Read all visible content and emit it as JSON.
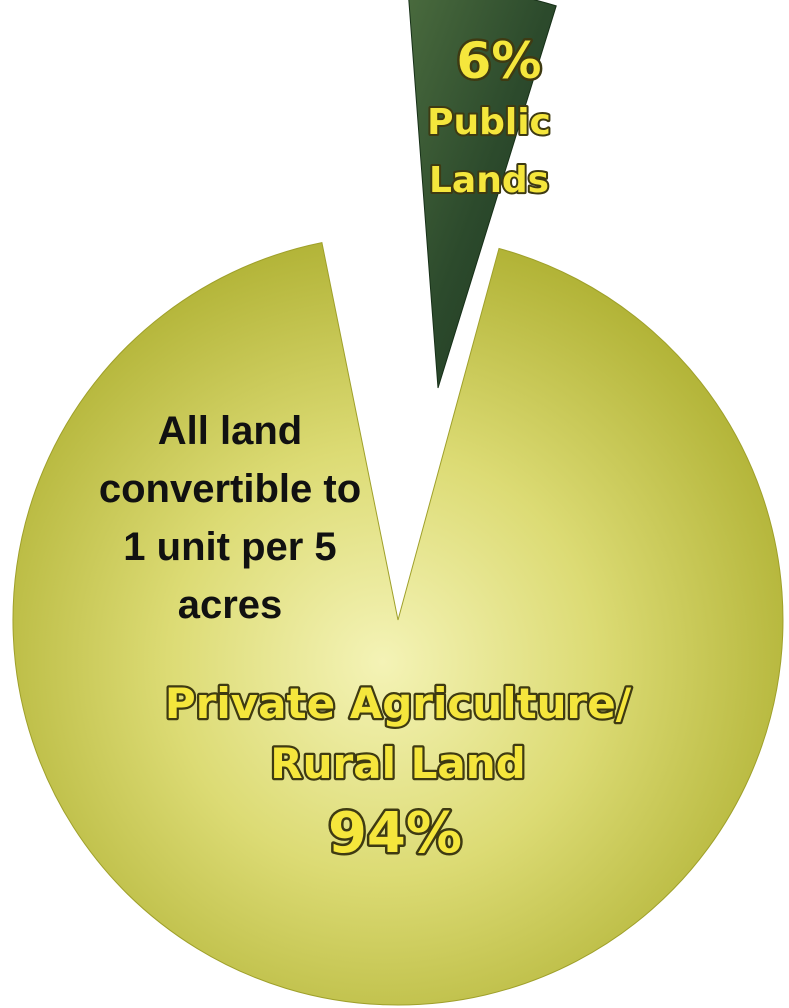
{
  "chart_data": {
    "type": "pie",
    "slices": [
      {
        "label": "Private Agriculture/\nRural Land",
        "value": 94,
        "value_label": "94%",
        "color": "#c9c83a",
        "exploded": false
      },
      {
        "label": "Public\nLands",
        "value": 6,
        "value_label": "6%",
        "color": "#2c4a2c",
        "exploded": true
      }
    ],
    "annotations": [
      {
        "text": "All land\nconvertible to\n1 unit per 5\nacres",
        "color": "#111111"
      }
    ],
    "label_color": "#f5e63c",
    "legend": "none",
    "title": ""
  }
}
